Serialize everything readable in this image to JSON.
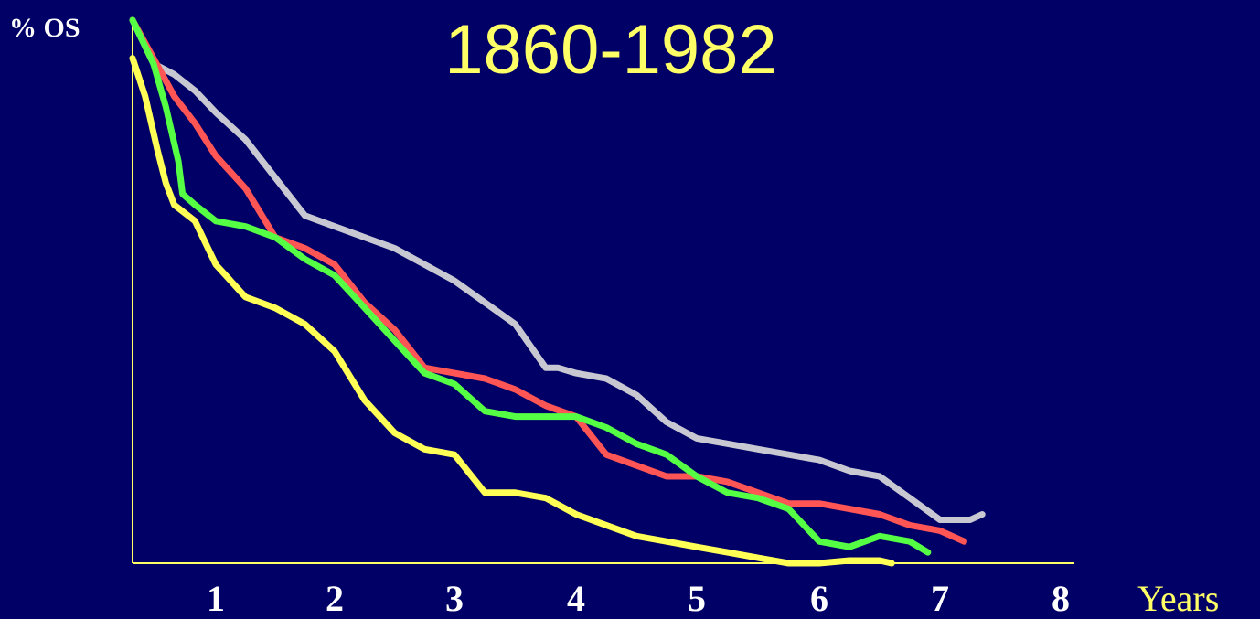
{
  "chart_data": {
    "type": "line",
    "title": "1860-1982",
    "xlabel": "Years",
    "ylabel": "% OS",
    "xlim": [
      0,
      8
    ],
    "ylim": [
      0,
      100
    ],
    "x_ticks": [
      "1",
      "2",
      "3",
      "4",
      "5",
      "6",
      "7",
      "8"
    ],
    "x_tick_values": [
      1,
      2,
      3,
      4,
      5,
      6,
      7,
      8
    ],
    "grid": false,
    "legend": "none",
    "series": [
      {
        "color": "#c8c8d2",
        "points": [
          [
            0,
            100
          ],
          [
            0.25,
            92
          ],
          [
            0.5,
            90
          ],
          [
            0.75,
            87
          ],
          [
            1,
            83
          ],
          [
            1.25,
            78
          ],
          [
            1.5,
            71
          ],
          [
            1.75,
            64
          ],
          [
            2,
            62
          ],
          [
            2.5,
            58
          ],
          [
            3,
            52
          ],
          [
            3.25,
            48
          ],
          [
            3.5,
            44
          ],
          [
            3.75,
            36
          ],
          [
            3.85,
            36
          ],
          [
            4,
            35
          ],
          [
            4.25,
            34
          ],
          [
            4.5,
            31
          ],
          [
            4.75,
            26
          ],
          [
            5,
            23
          ],
          [
            5.25,
            22
          ],
          [
            5.5,
            21
          ],
          [
            5.75,
            20
          ],
          [
            6,
            19
          ],
          [
            6.25,
            17
          ],
          [
            6.5,
            16
          ],
          [
            6.75,
            12
          ],
          [
            7,
            8
          ],
          [
            7.25,
            8
          ],
          [
            7.35,
            9
          ]
        ]
      },
      {
        "color": "#ff5555",
        "points": [
          [
            0,
            100
          ],
          [
            0.25,
            93
          ],
          [
            0.5,
            86
          ],
          [
            0.75,
            81
          ],
          [
            1,
            75
          ],
          [
            1.25,
            69
          ],
          [
            1.5,
            60
          ],
          [
            1.75,
            58
          ],
          [
            2,
            55
          ],
          [
            2.25,
            48
          ],
          [
            2.5,
            43
          ],
          [
            2.75,
            36
          ],
          [
            3,
            35
          ],
          [
            3.25,
            34
          ],
          [
            3.5,
            32
          ],
          [
            3.75,
            29
          ],
          [
            4,
            27
          ],
          [
            4.25,
            20
          ],
          [
            4.5,
            18
          ],
          [
            4.75,
            16
          ],
          [
            5,
            16
          ],
          [
            5.25,
            15
          ],
          [
            5.5,
            13
          ],
          [
            5.75,
            11
          ],
          [
            6,
            11
          ],
          [
            6.25,
            10
          ],
          [
            6.5,
            9
          ],
          [
            6.75,
            7
          ],
          [
            7,
            6
          ],
          [
            7.2,
            4
          ]
        ]
      },
      {
        "color": "#55ff44",
        "points": [
          [
            0,
            100
          ],
          [
            0.25,
            92
          ],
          [
            0.4,
            84
          ],
          [
            0.55,
            74
          ],
          [
            0.6,
            68
          ],
          [
            0.75,
            66
          ],
          [
            1,
            63
          ],
          [
            1.25,
            62
          ],
          [
            1.5,
            60
          ],
          [
            1.75,
            56
          ],
          [
            2,
            53
          ],
          [
            2.25,
            47
          ],
          [
            2.5,
            41
          ],
          [
            2.75,
            35
          ],
          [
            3,
            33
          ],
          [
            3.25,
            28
          ],
          [
            3.5,
            27
          ],
          [
            3.75,
            27
          ],
          [
            4,
            27
          ],
          [
            4.25,
            25
          ],
          [
            4.5,
            22
          ],
          [
            4.75,
            20
          ],
          [
            5,
            16
          ],
          [
            5.25,
            13
          ],
          [
            5.5,
            12
          ],
          [
            5.75,
            10
          ],
          [
            6,
            4
          ],
          [
            6.25,
            3
          ],
          [
            6.5,
            5
          ],
          [
            6.75,
            4
          ],
          [
            6.9,
            2
          ]
        ]
      },
      {
        "color": "#ffff55",
        "points": [
          [
            0,
            93
          ],
          [
            0.15,
            86
          ],
          [
            0.3,
            76
          ],
          [
            0.4,
            70
          ],
          [
            0.5,
            66
          ],
          [
            0.75,
            63
          ],
          [
            1,
            55
          ],
          [
            1.25,
            49
          ],
          [
            1.5,
            47
          ],
          [
            1.75,
            44
          ],
          [
            2,
            39
          ],
          [
            2.25,
            30
          ],
          [
            2.5,
            24
          ],
          [
            2.75,
            21
          ],
          [
            3,
            20
          ],
          [
            3.25,
            13
          ],
          [
            3.5,
            13
          ],
          [
            3.75,
            12
          ],
          [
            4,
            9
          ],
          [
            4.25,
            7
          ],
          [
            4.5,
            5
          ],
          [
            4.75,
            4
          ],
          [
            5,
            3
          ],
          [
            5.25,
            2
          ],
          [
            5.5,
            1
          ],
          [
            5.75,
            0
          ],
          [
            6,
            0
          ],
          [
            6.25,
            0.5
          ],
          [
            6.5,
            0.5
          ],
          [
            6.6,
            0
          ]
        ]
      }
    ]
  }
}
